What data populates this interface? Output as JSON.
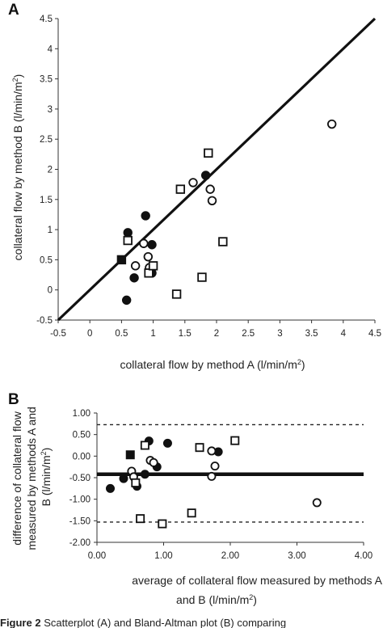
{
  "figure": {
    "caption_label": "Figure 2",
    "caption_text": " Scatterplot (A) and Bland-Altman plot (B) comparing"
  },
  "chart_data": [
    {
      "panel": "A",
      "type": "scatter",
      "xlabel": "collateral flow by method A (l/min/m",
      "xlabel_sup": "2",
      "xlabel_end": ")",
      "ylabel": "collateral flow by method B (l/min/m",
      "ylabel_sup": "2",
      "ylabel_end": ")",
      "xlim": [
        -0.5,
        4.5
      ],
      "ylim": [
        -0.5,
        4.5
      ],
      "xticks": [
        "-0.5",
        "0",
        "0.5",
        "1",
        "1.5",
        "2",
        "2.5",
        "3",
        "3.5",
        "4",
        "4.5"
      ],
      "yticks": [
        "-0.5",
        "0",
        "0.5",
        "1",
        "1.5",
        "2",
        "2.5",
        "3",
        "3.5",
        "4",
        "4.5"
      ],
      "identity_line": {
        "from": [
          -0.5,
          -0.5
        ],
        "to": [
          4.5,
          4.5
        ]
      },
      "series": [
        {
          "marker": "filled-circle",
          "points": [
            [
              0.6,
              0.95
            ],
            [
              0.58,
              -0.17
            ],
            [
              0.7,
              0.2
            ],
            [
              0.88,
              1.23
            ],
            [
              0.98,
              0.75
            ],
            [
              0.98,
              0.28
            ],
            [
              1.83,
              1.9
            ]
          ]
        },
        {
          "marker": "open-circle",
          "points": [
            [
              0.72,
              0.4
            ],
            [
              0.85,
              0.77
            ],
            [
              0.92,
              0.55
            ],
            [
              0.94,
              0.37
            ],
            [
              1.63,
              1.78
            ],
            [
              1.9,
              1.67
            ],
            [
              1.93,
              1.48
            ],
            [
              3.82,
              2.75
            ]
          ]
        },
        {
          "marker": "open-square",
          "points": [
            [
              0.6,
              0.82
            ],
            [
              0.93,
              0.28
            ],
            [
              1.0,
              0.4
            ],
            [
              1.37,
              -0.07
            ],
            [
              1.43,
              1.67
            ],
            [
              1.77,
              0.21
            ],
            [
              1.87,
              2.27
            ],
            [
              2.1,
              0.8
            ]
          ]
        },
        {
          "marker": "filled-square",
          "points": [
            [
              0.5,
              0.5
            ]
          ]
        }
      ]
    },
    {
      "panel": "B",
      "type": "scatter",
      "xlabel": "average of collateral flow measured by methods A",
      "xlabel2": "and B (l/min/m",
      "xlabel2_sup": "2",
      "xlabel2_end": ")",
      "ylabel_lines": [
        "difference of collateral flow",
        "measured by methods A and",
        "B (l/min/m"
      ],
      "ylabel_sup": "2",
      "ylabel_end": ")",
      "xlim": [
        0,
        4
      ],
      "ylim": [
        -2,
        1
      ],
      "xticks": [
        "0.00",
        "1.00",
        "2.00",
        "3.00",
        "4.00"
      ],
      "yticks": [
        "1.00",
        "0.50",
        "0.00",
        "-0.50",
        "-1.00",
        "-1.50",
        "-2.00"
      ],
      "mean_difference": -0.42,
      "limits_of_agreement": [
        0.73,
        -1.53
      ],
      "series": [
        {
          "marker": "filled-circle",
          "points": [
            [
              0.2,
              -0.75
            ],
            [
              0.4,
              -0.52
            ],
            [
              0.6,
              -0.7
            ],
            [
              0.72,
              -0.42
            ],
            [
              0.78,
              0.35
            ],
            [
              0.9,
              -0.25
            ],
            [
              1.06,
              0.3
            ],
            [
              1.82,
              0.1
            ]
          ]
        },
        {
          "marker": "open-circle",
          "points": [
            [
              0.52,
              -0.35
            ],
            [
              0.55,
              -0.48
            ],
            [
              0.8,
              -0.1
            ],
            [
              0.85,
              -0.15
            ],
            [
              1.72,
              0.12
            ],
            [
              1.72,
              -0.47
            ],
            [
              1.77,
              -0.23
            ],
            [
              3.3,
              -1.08
            ]
          ]
        },
        {
          "marker": "open-square",
          "points": [
            [
              0.58,
              -0.62
            ],
            [
              0.72,
              0.25
            ],
            [
              0.65,
              -1.45
            ],
            [
              0.98,
              -1.57
            ],
            [
              1.42,
              -1.32
            ],
            [
              1.54,
              0.2
            ],
            [
              2.07,
              0.36
            ]
          ]
        },
        {
          "marker": "filled-square",
          "points": [
            [
              0.5,
              0.03
            ]
          ]
        }
      ]
    }
  ]
}
